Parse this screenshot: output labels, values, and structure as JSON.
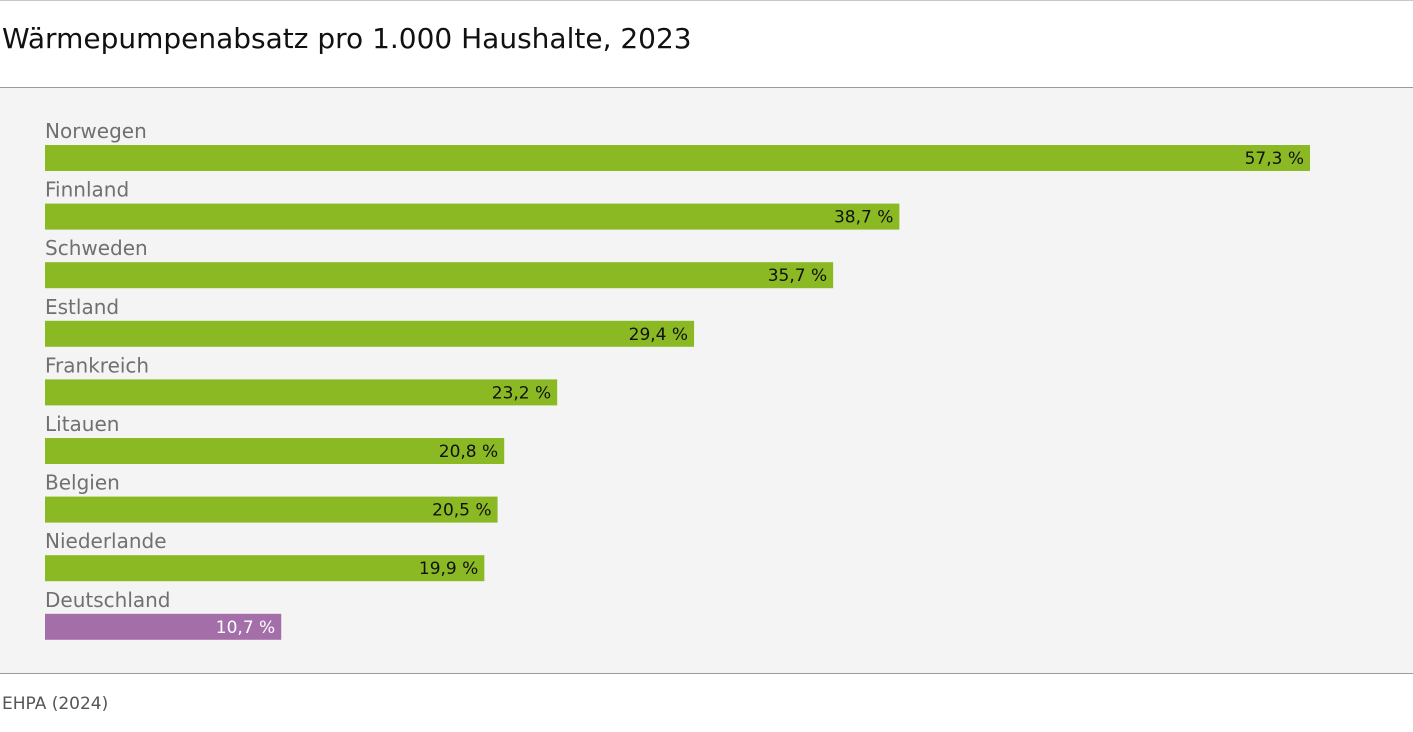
{
  "chart_data": {
    "type": "bar",
    "orientation": "horizontal",
    "title": "Wärmepumpenabsatz pro 1.000 Haushalte, 2023",
    "source": "EHPA (2024)",
    "categories": [
      "Norwegen",
      "Finnland",
      "Schweden",
      "Estland",
      "Frankreich",
      "Litauen",
      "Belgien",
      "Niederlande",
      "Deutschland"
    ],
    "values": [
      57.3,
      38.7,
      35.7,
      29.4,
      23.2,
      20.8,
      20.5,
      19.9,
      10.7
    ],
    "value_labels": [
      "57,3 %",
      "38,7 %",
      "35,7 %",
      "29,4 %",
      "23,2 %",
      "20,8 %",
      "20,5 %",
      "19,9 %",
      "10,7 %"
    ],
    "xlim": [
      0,
      60
    ],
    "grid": false,
    "legend": "none",
    "colors": {
      "bar_default": "#8ab923",
      "bar_highlight": "#a46fa8",
      "label_default": "#111111",
      "label_highlight": "#ffffff"
    },
    "highlight_category": "Deutschland"
  }
}
